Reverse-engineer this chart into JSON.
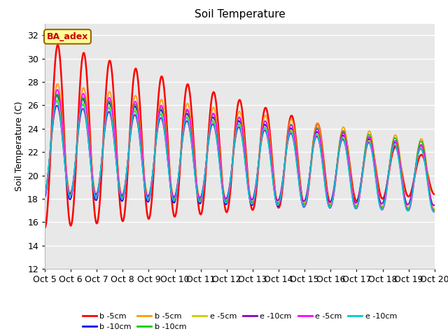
{
  "title": "Soil Temperature",
  "ylabel": "Soil Temperature (C)",
  "xlabel": "",
  "ylim": [
    12,
    33
  ],
  "xlim": [
    0,
    360
  ],
  "bg_color": "#e8e8e8",
  "fig_color": "#ffffff",
  "grid_color": "#ffffff",
  "annotation_text": "BA_adex",
  "annotation_bg": "#ffff99",
  "annotation_border": "#996600",
  "annotation_color": "#cc0000",
  "xtick_labels": [
    "Oct 5",
    "Oct 6",
    "Oct 7",
    "Oct 8",
    "Oct 9",
    "Oct 10",
    "Oct 11",
    "Oct 12",
    "Oct 13",
    "Oct 14",
    "Oct 15",
    "Oct 16",
    "Oct 17",
    "Oct 18",
    "Oct 19",
    "Oct 20"
  ],
  "xtick_positions": [
    0,
    24,
    48,
    72,
    96,
    120,
    144,
    168,
    192,
    216,
    240,
    264,
    288,
    312,
    336,
    360
  ],
  "ytick_positions": [
    12,
    14,
    16,
    18,
    20,
    22,
    24,
    26,
    28,
    30,
    32
  ],
  "series": [
    {
      "label": "b -5cm",
      "color": "#ff0000",
      "base": 23.5,
      "amp": 8.0,
      "amp_decay": 0.018,
      "base_decay": 0.01,
      "phase": 0.0,
      "amp_scale": 1.0
    },
    {
      "label": "b -10cm",
      "color": "#0000ff",
      "base": 22.5,
      "amp": 4.5,
      "amp_decay": 0.005,
      "base_decay": 0.008,
      "phase": 0.18,
      "amp_scale": 1.0
    },
    {
      "label": "b -5cm",
      "color": "#ff9900",
      "base": 23.2,
      "amp": 4.8,
      "amp_decay": 0.005,
      "base_decay": 0.009,
      "phase": 0.05,
      "amp_scale": 1.0
    },
    {
      "label": "b -10cm",
      "color": "#00cc00",
      "base": 22.8,
      "amp": 4.3,
      "amp_decay": 0.004,
      "base_decay": 0.008,
      "phase": 0.12,
      "amp_scale": 1.0
    },
    {
      "label": "e -5cm",
      "color": "#cccc00",
      "base": 22.6,
      "amp": 4.0,
      "amp_decay": 0.004,
      "base_decay": 0.008,
      "phase": 0.08,
      "amp_scale": 1.0
    },
    {
      "label": "e -10cm",
      "color": "#8800cc",
      "base": 22.3,
      "amp": 3.8,
      "amp_decay": 0.004,
      "base_decay": 0.007,
      "phase": 0.2,
      "amp_scale": 1.0
    },
    {
      "label": "e -5cm",
      "color": "#ff00ff",
      "base": 22.9,
      "amp": 4.6,
      "amp_decay": 0.005,
      "base_decay": 0.009,
      "phase": 0.1,
      "amp_scale": 1.0
    },
    {
      "label": "e -10cm",
      "color": "#00cccc",
      "base": 22.4,
      "amp": 4.1,
      "amp_decay": 0.004,
      "base_decay": 0.008,
      "phase": 0.22,
      "amp_scale": 1.0
    }
  ]
}
